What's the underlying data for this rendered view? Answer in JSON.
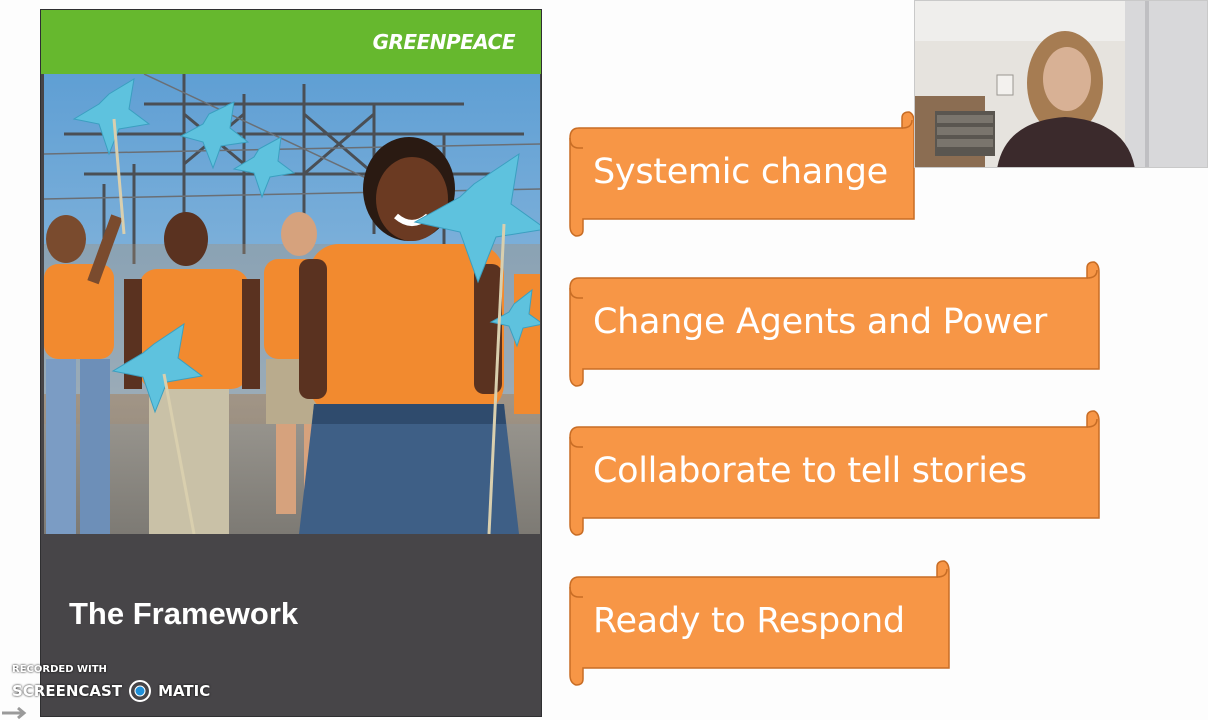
{
  "cover": {
    "brand": "GREENPEACE",
    "title": "The Framework",
    "colors": {
      "topbar": "#66b82e",
      "panel": "#474548"
    }
  },
  "banners": [
    {
      "label": "Systemic change"
    },
    {
      "label": "Change Agents and Power"
    },
    {
      "label": "Collaborate to tell stories"
    },
    {
      "label": "Ready to Respond"
    }
  ],
  "banner_color": "#f79646",
  "watermark": {
    "recorded_with": "RECORDED WITH",
    "brand_left": "SCREENCAST",
    "brand_right": "MATIC"
  }
}
